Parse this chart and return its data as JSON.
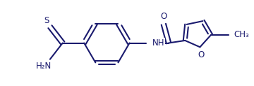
{
  "background_color": "#ffffff",
  "line_color": "#1a1a6e",
  "line_width": 1.5,
  "font_size": 8.5,
  "figsize": [
    3.6,
    1.23
  ],
  "dpi": 100,
  "xlim": [
    0.0,
    10.0
  ],
  "ylim": [
    0.0,
    3.4
  ]
}
